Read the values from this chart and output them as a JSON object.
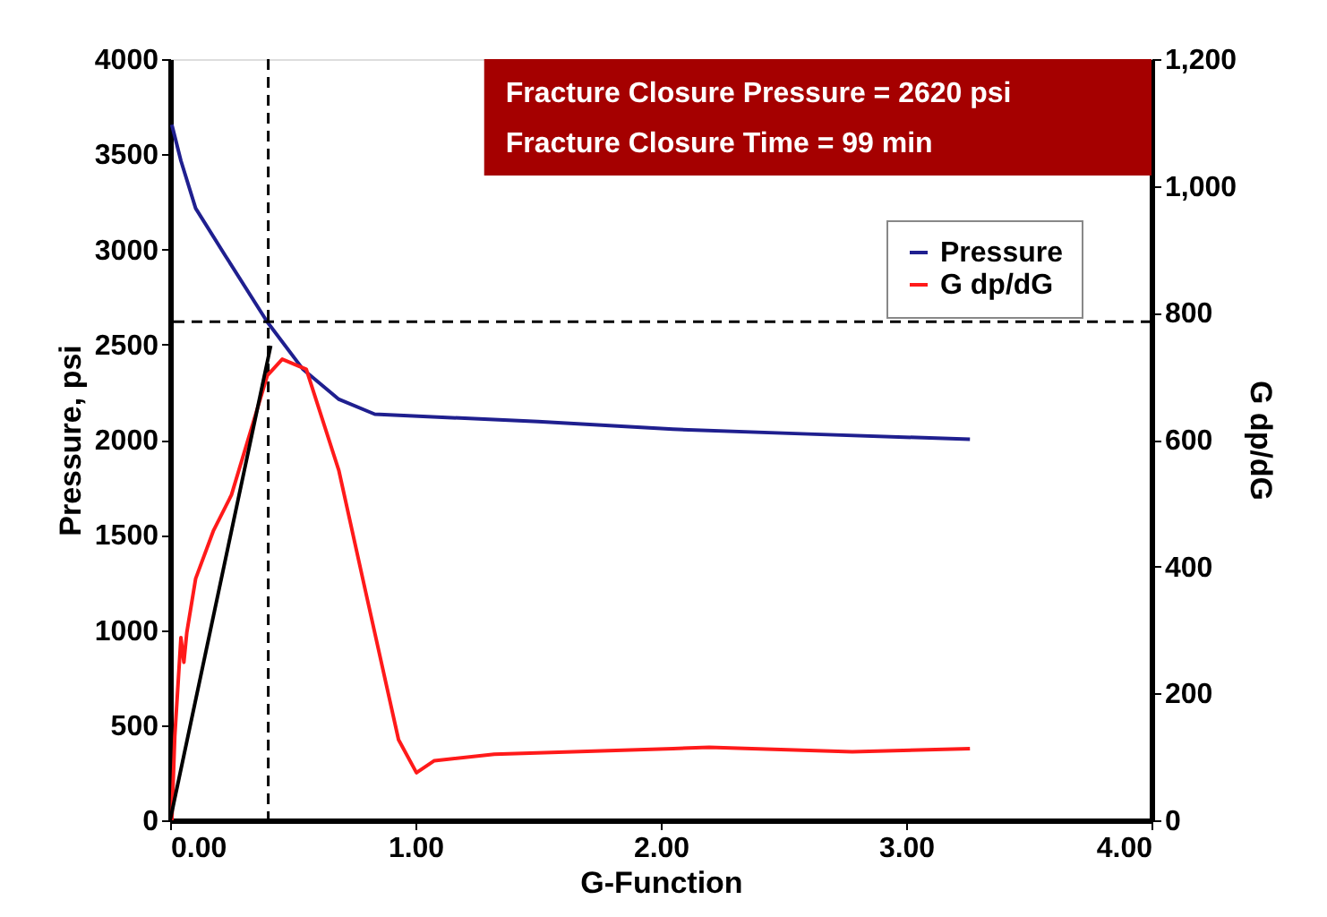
{
  "chart_data": {
    "type": "line",
    "xlabel": "G-Function",
    "ylabel": "Pressure, psi",
    "y2label": "G dp/dG",
    "xlim": [
      0,
      4
    ],
    "xticks": [
      {
        "value": 0,
        "label": "0.00"
      },
      {
        "value": 1,
        "label": "1.00"
      },
      {
        "value": 2,
        "label": "2.00"
      },
      {
        "value": 3,
        "label": "3.00"
      },
      {
        "value": 4,
        "label": "4.00"
      }
    ],
    "ylim": [
      0,
      4000
    ],
    "yticks": [
      0,
      500,
      1000,
      1500,
      2000,
      2500,
      3000,
      3500,
      4000
    ],
    "y2lim": [
      0,
      1200
    ],
    "y2ticks": [
      0,
      200,
      400,
      600,
      800,
      {
        "value": 1000,
        "label": "1,000"
      },
      {
        "value": 1200,
        "label": "1,200"
      }
    ],
    "grid": false,
    "legend": "top right",
    "line_style": "solid",
    "marker": "none",
    "series": [
      {
        "name": "Pressure",
        "color": "#1f1f8f",
        "axis": "y",
        "x": [
          0.007,
          0.044,
          0.104,
          0.226,
          0.396,
          0.542,
          0.688,
          0.834,
          1.5,
          2.05,
          2.6,
          3.26
        ],
        "values": [
          3655,
          3466,
          3216,
          2965,
          2619,
          2369,
          2212,
          2134,
          2095,
          2055,
          2030,
          2002
        ]
      },
      {
        "name": "G dp/dG",
        "color": "#ff1a1a",
        "axis": "y2",
        "x": [
          0.007,
          0.019,
          0.044,
          0.056,
          0.068,
          0.104,
          0.177,
          0.25,
          0.323,
          0.396,
          0.457,
          0.555,
          0.688,
          0.785,
          0.931,
          1.004,
          1.077,
          1.321,
          2.05,
          2.197,
          2.78,
          3.26
        ],
        "values": [
          0,
          132,
          288,
          249,
          296,
          381,
          457,
          513,
          607,
          701,
          727,
          711,
          551,
          381,
          127,
          75,
          94,
          104,
          113,
          115,
          108,
          113
        ]
      },
      {
        "color": "#000000",
        "axis": "y2",
        "x": [
          0,
          0.41
        ],
        "values": [
          0,
          748
        ]
      }
    ],
    "ref_lines": [
      {
        "axis": "y",
        "value": 2620,
        "color": "#000000",
        "line_style": "dashed"
      },
      {
        "axis": "x",
        "value": 0.4,
        "color": "#000000",
        "line_style": "dashed"
      }
    ],
    "annotations": [
      "Fracture Closure Pressure = 2620 psi",
      "Fracture Closure Time = 99 min"
    ]
  }
}
